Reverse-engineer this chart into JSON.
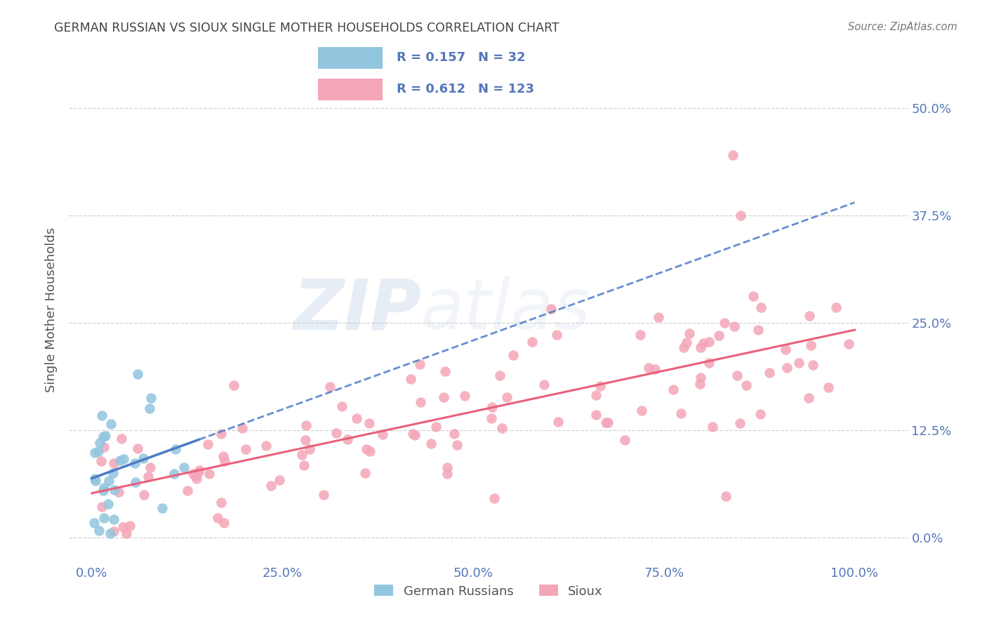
{
  "title": "GERMAN RUSSIAN VS SIOUX SINGLE MOTHER HOUSEHOLDS CORRELATION CHART",
  "source": "Source: ZipAtlas.com",
  "ylabel": "Single Mother Households",
  "watermark_zip": "ZIP",
  "watermark_atlas": "atlas",
  "legend_gr": {
    "R": 0.157,
    "N": 32,
    "color": "#92c5de",
    "label": "German Russians"
  },
  "legend_si": {
    "R": 0.612,
    "N": 123,
    "color": "#f4a6b8",
    "label": "Sioux"
  },
  "x_ticks_labels": [
    "0.0%",
    "25.0%",
    "50.0%",
    "75.0%",
    "100.0%"
  ],
  "x_ticks_vals": [
    0,
    25,
    50,
    75,
    100
  ],
  "y_ticks_labels": [
    "0.0%",
    "12.5%",
    "25.0%",
    "37.5%",
    "50.0%"
  ],
  "y_ticks_vals": [
    0,
    12.5,
    25,
    37.5,
    50
  ],
  "xlim": [
    -3,
    107
  ],
  "ylim": [
    -3,
    56
  ],
  "title_color": "#444444",
  "tick_color": "#5577bb",
  "grid_color": "#cccccc",
  "background_color": "#ffffff",
  "gr_color": "#92c5de",
  "si_color": "#f4a6b8",
  "trend_gr_color": "#4d7cc7",
  "trend_si_color": "#e8607a",
  "legend_border_color": "#aaaaaa"
}
